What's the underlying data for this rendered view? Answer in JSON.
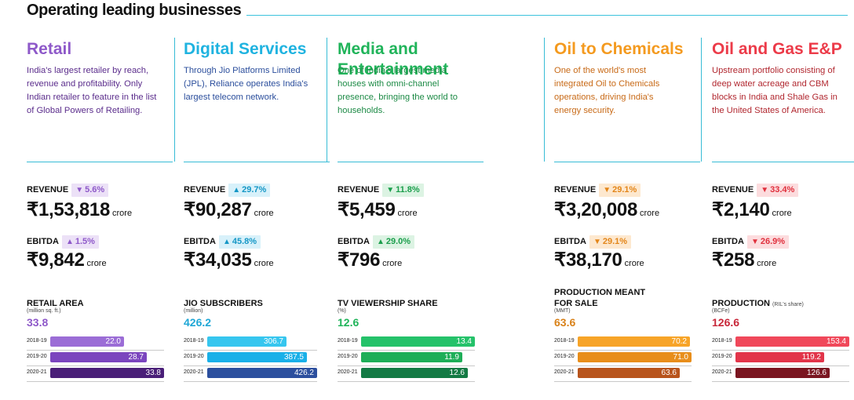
{
  "header": {
    "title": "Operating leading businesses"
  },
  "segments": [
    {
      "id": "retail",
      "title": "Retail",
      "description": "India's largest retailer by reach, revenue and profitability. Only Indian retailer to feature in the list of Global Powers of Retailing.",
      "title_color": "#8e59c9",
      "desc_color": "#5b2d8c",
      "revenue": {
        "label": "REVENUE",
        "change": "5.6%",
        "direction": "down",
        "value": "₹1,53,818",
        "unit": "crore"
      },
      "ebitda": {
        "label": "EBITDA",
        "change": "1.5%",
        "direction": "up",
        "value": "₹9,842",
        "unit": "crore"
      },
      "badge_bg": "#ece1f7",
      "badge_fg": "#8e59c9",
      "stat": {
        "label": "RETAIL AREA",
        "note": "",
        "unit": "(million sq. ft.)",
        "total": "33.8",
        "total_color": "#8e59c9"
      },
      "years": [
        "2018-19",
        "2019-20",
        "2020-21"
      ],
      "values": [
        22.0,
        28.7,
        33.8
      ],
      "labels": [
        "22.0",
        "28.7",
        "33.8"
      ],
      "colors": [
        "#9b6dd6",
        "#7b45be",
        "#4a1f78"
      ]
    },
    {
      "id": "digital",
      "title": "Digital Services",
      "description": "Through Jio Platforms Limited (JPL), Reliance operates India's largest telecom network.",
      "title_color": "#1fb3e0",
      "desc_color": "#2b4e9c",
      "revenue": {
        "label": "REVENUE",
        "change": "29.7%",
        "direction": "up",
        "value": "₹90,287",
        "unit": "crore"
      },
      "ebitda": {
        "label": "EBITDA",
        "change": "45.8%",
        "direction": "up",
        "value": "₹34,035",
        "unit": "crore"
      },
      "badge_bg": "#d8f1fa",
      "badge_fg": "#1597c6",
      "stat": {
        "label": "JIO SUBSCRIBERS",
        "note": "",
        "unit": "(million)",
        "total": "426.2",
        "total_color": "#1fa7d6"
      },
      "years": [
        "2018-19",
        "2019-20",
        "2020-21"
      ],
      "values": [
        306.7,
        387.5,
        426.2
      ],
      "labels": [
        "306.7",
        "387.5",
        "426.2"
      ],
      "colors": [
        "#36c6ef",
        "#1ab0e8",
        "#2c4f9e"
      ]
    },
    {
      "id": "media",
      "title": "Media and Entertainment",
      "description": "One of India's largest media houses with omni-channel presence, bringing the world to households.",
      "title_color": "#20b45a",
      "desc_color": "#1c8a45",
      "revenue": {
        "label": "REVENUE",
        "change": "11.8%",
        "direction": "down",
        "value": "₹5,459",
        "unit": "crore"
      },
      "ebitda": {
        "label": "EBITDA",
        "change": "29.0%",
        "direction": "up",
        "value": "₹796",
        "unit": "crore"
      },
      "badge_bg": "#dcf3e3",
      "badge_fg": "#1b9e4c",
      "stat": {
        "label": "TV VIEWERSHIP SHARE",
        "note": "",
        "unit": "(%)",
        "total": "12.6",
        "total_color": "#20b45a"
      },
      "years": [
        "2018-19",
        "2019-20",
        "2020-21"
      ],
      "values": [
        13.4,
        11.9,
        12.6
      ],
      "labels": [
        "13.4",
        "11.9",
        "12.6"
      ],
      "colors": [
        "#25c26a",
        "#1eae58",
        "#137a44"
      ]
    },
    {
      "id": "o2c",
      "title": "Oil to Chemicals",
      "description": "One of the world's most integrated Oil to Chemicals operations, driving India's energy security.",
      "title_color": "#f49a1f",
      "desc_color": "#c86a17",
      "revenue": {
        "label": "REVENUE",
        "change": "29.1%",
        "direction": "down",
        "value": "₹3,20,008",
        "unit": "crore"
      },
      "ebitda": {
        "label": "EBITDA",
        "change": "29.1%",
        "direction": "down",
        "value": "₹38,170",
        "unit": "crore"
      },
      "badge_bg": "#fde8cf",
      "badge_fg": "#e3861a",
      "stat": {
        "label": "PRODUCTION MEANT FOR SALE",
        "note": "",
        "unit": "(MMT)",
        "total": "63.6",
        "total_color": "#d9821a"
      },
      "years": [
        "2018-19",
        "2019-20",
        "2020-21"
      ],
      "values": [
        70.2,
        71.0,
        63.6
      ],
      "labels": [
        "70.2",
        "71.0",
        "63.6"
      ],
      "colors": [
        "#f7a428",
        "#e88e1b",
        "#b8541c"
      ]
    },
    {
      "id": "oilgas",
      "title": "Oil and Gas E&P",
      "description": "Upstream portfolio consisting of deep water acreage and CBM blocks in India and Shale Gas in the United States of America.",
      "title_color": "#ec3b49",
      "desc_color": "#b1272f",
      "revenue": {
        "label": "REVENUE",
        "change": "33.4%",
        "direction": "down",
        "value": "₹2,140",
        "unit": "crore"
      },
      "ebitda": {
        "label": "EBITDA",
        "change": "26.9%",
        "direction": "down",
        "value": "₹258",
        "unit": "crore"
      },
      "badge_bg": "#fcdcde",
      "badge_fg": "#e0303d",
      "stat": {
        "label": "PRODUCTION",
        "note": "(RIL's share)",
        "unit": "(BCFe)",
        "total": "126.6",
        "total_color": "#c8283a"
      },
      "years": [
        "2018-19",
        "2019-20",
        "2020-21"
      ],
      "values": [
        153.4,
        119.2,
        126.6
      ],
      "labels": [
        "153.4",
        "119.2",
        "126.6"
      ],
      "colors": [
        "#f0485a",
        "#e2354a",
        "#7a1520"
      ]
    }
  ]
}
